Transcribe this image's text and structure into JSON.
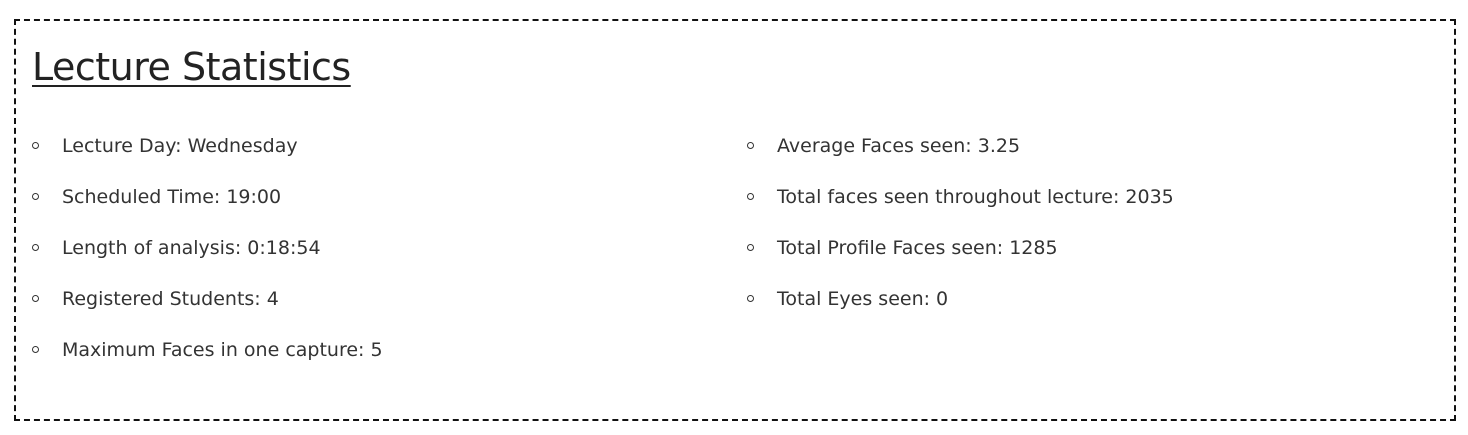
{
  "panel": {
    "title": "Lecture Statistics"
  },
  "stats_left": [
    "Lecture Day: Wednesday",
    "Scheduled Time: 19:00",
    "Length of analysis: 0:18:54",
    "Registered Students: 4",
    "Maximum Faces in one capture: 5"
  ],
  "stats_right": [
    "Average Faces seen: 3.25",
    "Total faces seen throughout lecture: 2035",
    "Total Profile Faces seen: 1285",
    "Total Eyes seen: 0"
  ],
  "colors": {
    "border": "#111111",
    "text": "#333333"
  }
}
